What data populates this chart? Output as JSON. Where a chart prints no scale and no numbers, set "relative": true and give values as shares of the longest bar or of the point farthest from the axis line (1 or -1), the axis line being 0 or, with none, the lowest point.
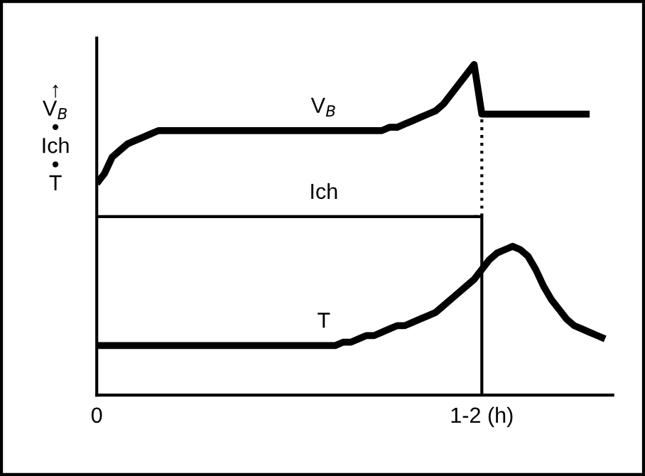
{
  "chart_data": {
    "type": "line",
    "relative": true,
    "ylabel": "↑\nV$_{B}$\n•\nIch\n•\nT",
    "categories": [
      "0",
      null,
      null,
      null,
      null,
      null,
      null,
      null,
      null,
      null,
      null,
      null,
      null,
      null,
      null,
      null,
      null,
      null,
      null,
      null,
      null,
      null,
      null,
      null,
      null,
      null,
      null,
      null,
      null,
      null,
      null,
      null,
      null,
      null,
      null,
      null,
      null,
      null,
      null,
      null,
      null,
      null,
      null,
      null,
      null,
      null,
      null,
      null,
      null,
      null,
      "1-2 (h)",
      null,
      null,
      null,
      null,
      null,
      null,
      null,
      null,
      null,
      null,
      null,
      null,
      null,
      null,
      null,
      null
    ],
    "grid": false,
    "legend": false,
    "marker": "none",
    "line_style": "solid",
    "series": [
      {
        "name": "V$_{B}$",
        "color": "#000000",
        "values": [
          0.64,
          0.67,
          0.72,
          0.74,
          0.76,
          0.77,
          0.78,
          0.79,
          0.8,
          0.8,
          0.8,
          0.8,
          0.8,
          0.8,
          0.8,
          0.8,
          0.8,
          0.8,
          0.8,
          0.8,
          0.8,
          0.8,
          0.8,
          0.8,
          0.8,
          0.8,
          0.8,
          0.8,
          0.8,
          0.8,
          0.8,
          0.8,
          0.8,
          0.8,
          0.8,
          0.8,
          0.8,
          0.8,
          0.81,
          0.81,
          0.82,
          0.83,
          0.84,
          0.85,
          0.86,
          0.88,
          0.91,
          0.94,
          0.97,
          1.0,
          0.85,
          0.85,
          0.85,
          0.85,
          0.85,
          0.85,
          0.85,
          0.85,
          0.85,
          0.85,
          0.85,
          0.85,
          0.85,
          0.85,
          0.85,
          null,
          null
        ]
      },
      {
        "name": "Ich",
        "type": "step",
        "color": "#000000",
        "values": [
          0.54,
          0.54,
          0.54,
          0.54,
          0.54,
          0.54,
          0.54,
          0.54,
          0.54,
          0.54,
          0.54,
          0.54,
          0.54,
          0.54,
          0.54,
          0.54,
          0.54,
          0.54,
          0.54,
          0.54,
          0.54,
          0.54,
          0.54,
          0.54,
          0.54,
          0.54,
          0.54,
          0.54,
          0.54,
          0.54,
          0.54,
          0.54,
          0.54,
          0.54,
          0.54,
          0.54,
          0.54,
          0.54,
          0.54,
          0.54,
          0.54,
          0.54,
          0.54,
          0.54,
          0.54,
          0.54,
          0.54,
          0.54,
          0.54,
          0.54,
          0,
          null,
          null,
          null,
          null,
          null,
          null,
          null,
          null,
          null,
          null,
          null,
          null,
          null,
          null,
          null,
          null
        ]
      },
      {
        "type": "step",
        "color": "#000000",
        "line_style": "dotted",
        "values": [
          null,
          null,
          null,
          null,
          null,
          null,
          null,
          null,
          null,
          null,
          null,
          null,
          null,
          null,
          null,
          null,
          null,
          null,
          null,
          null,
          null,
          null,
          null,
          null,
          null,
          null,
          null,
          null,
          null,
          null,
          null,
          null,
          null,
          null,
          null,
          null,
          null,
          null,
          null,
          null,
          null,
          null,
          null,
          null,
          null,
          null,
          null,
          null,
          null,
          0.54,
          0.85,
          null,
          null,
          null,
          null,
          null,
          null,
          null,
          null,
          null,
          null,
          null,
          null,
          null,
          null,
          null,
          null
        ]
      },
      {
        "name": "T",
        "color": "#000000",
        "values": [
          0.15,
          0.15,
          0.15,
          0.15,
          0.15,
          0.15,
          0.15,
          0.15,
          0.15,
          0.15,
          0.15,
          0.15,
          0.15,
          0.15,
          0.15,
          0.15,
          0.15,
          0.15,
          0.15,
          0.15,
          0.15,
          0.15,
          0.15,
          0.15,
          0.15,
          0.15,
          0.15,
          0.15,
          0.15,
          0.15,
          0.15,
          0.15,
          0.16,
          0.16,
          0.17,
          0.18,
          0.18,
          0.19,
          0.2,
          0.21,
          0.21,
          0.22,
          0.23,
          0.24,
          0.25,
          0.27,
          0.29,
          0.31,
          0.33,
          0.35,
          0.38,
          0.41,
          0.43,
          0.44,
          0.45,
          0.44,
          0.42,
          0.38,
          0.33,
          0.29,
          0.26,
          0.23,
          0.21,
          0.2,
          0.19,
          0.18,
          0.17
        ]
      }
    ]
  }
}
